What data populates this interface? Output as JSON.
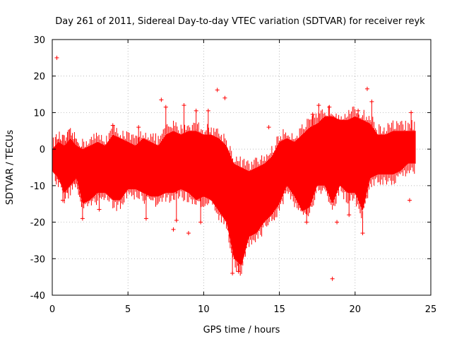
{
  "chart_data": {
    "type": "scatter",
    "title": "Day 261 of 2011, Sidereal Day-to-day VTEC variation (SDTVAR) for receiver reyk",
    "xlabel": "GPS time / hours",
    "ylabel": "SDTVAR / TECUs",
    "xlim": [
      0,
      25
    ],
    "ylim": [
      -40,
      30
    ],
    "xticks": [
      "0",
      "5",
      "10",
      "15",
      "20",
      "25"
    ],
    "yticks": [
      "-40",
      "-30",
      "-20",
      "-10",
      "0",
      "10",
      "20",
      "30"
    ],
    "grid": true,
    "series_color": "#ff0000",
    "marker": "+",
    "envelope": [
      {
        "x": 0.0,
        "hi": 0,
        "lo": -6
      },
      {
        "x": 0.4,
        "hi": 2,
        "lo": -8
      },
      {
        "x": 0.8,
        "hi": 1,
        "lo": -12
      },
      {
        "x": 1.2,
        "hi": 3,
        "lo": -10
      },
      {
        "x": 1.6,
        "hi": 1,
        "lo": -8
      },
      {
        "x": 2.0,
        "hi": 0,
        "lo": -15
      },
      {
        "x": 2.5,
        "hi": 1,
        "lo": -14
      },
      {
        "x": 3.0,
        "hi": 2,
        "lo": -12
      },
      {
        "x": 3.5,
        "hi": 1,
        "lo": -12
      },
      {
        "x": 4.0,
        "hi": 4,
        "lo": -14
      },
      {
        "x": 4.5,
        "hi": 3,
        "lo": -14
      },
      {
        "x": 5.0,
        "hi": 2,
        "lo": -11
      },
      {
        "x": 5.5,
        "hi": 1,
        "lo": -11
      },
      {
        "x": 6.0,
        "hi": 3,
        "lo": -12
      },
      {
        "x": 6.5,
        "hi": 2,
        "lo": -13
      },
      {
        "x": 7.0,
        "hi": 1,
        "lo": -13
      },
      {
        "x": 7.5,
        "hi": 4,
        "lo": -12
      },
      {
        "x": 8.0,
        "hi": 5,
        "lo": -12
      },
      {
        "x": 8.5,
        "hi": 4,
        "lo": -11
      },
      {
        "x": 9.0,
        "hi": 5,
        "lo": -12
      },
      {
        "x": 9.5,
        "hi": 5,
        "lo": -14
      },
      {
        "x": 10.0,
        "hi": 4,
        "lo": -13
      },
      {
        "x": 10.5,
        "hi": 4,
        "lo": -14
      },
      {
        "x": 11.0,
        "hi": 3,
        "lo": -17
      },
      {
        "x": 11.5,
        "hi": 1,
        "lo": -20
      },
      {
        "x": 12.0,
        "hi": -4,
        "lo": -30
      },
      {
        "x": 12.5,
        "hi": -5,
        "lo": -32
      },
      {
        "x": 13.0,
        "hi": -6,
        "lo": -24
      },
      {
        "x": 13.5,
        "hi": -5,
        "lo": -23
      },
      {
        "x": 14.0,
        "hi": -4,
        "lo": -20
      },
      {
        "x": 14.5,
        "hi": -2,
        "lo": -18
      },
      {
        "x": 15.0,
        "hi": 2,
        "lo": -15
      },
      {
        "x": 15.5,
        "hi": 3,
        "lo": -10
      },
      {
        "x": 16.0,
        "hi": 2,
        "lo": -13
      },
      {
        "x": 16.5,
        "hi": 4,
        "lo": -17
      },
      {
        "x": 17.0,
        "hi": 6,
        "lo": -16
      },
      {
        "x": 17.5,
        "hi": 7,
        "lo": -10
      },
      {
        "x": 18.0,
        "hi": 9,
        "lo": -10
      },
      {
        "x": 18.5,
        "hi": 9,
        "lo": -15
      },
      {
        "x": 19.0,
        "hi": 8,
        "lo": -10
      },
      {
        "x": 19.5,
        "hi": 8,
        "lo": -12
      },
      {
        "x": 20.0,
        "hi": 9,
        "lo": -12
      },
      {
        "x": 20.5,
        "hi": 8,
        "lo": -17
      },
      {
        "x": 21.0,
        "hi": 7,
        "lo": -8
      },
      {
        "x": 21.5,
        "hi": 4,
        "lo": -7
      },
      {
        "x": 22.0,
        "hi": 4,
        "lo": -7
      },
      {
        "x": 22.5,
        "hi": 5,
        "lo": -7
      },
      {
        "x": 23.0,
        "hi": 5,
        "lo": -6
      },
      {
        "x": 23.5,
        "hi": 5,
        "lo": -4
      },
      {
        "x": 24.0,
        "hi": 5,
        "lo": -4
      }
    ],
    "spikes": [
      {
        "x": 0.3,
        "y": 25
      },
      {
        "x": 0.5,
        "y": -8
      },
      {
        "x": 0.7,
        "y": -14
      },
      {
        "x": 2.0,
        "y": -19
      },
      {
        "x": 3.1,
        "y": -16.5
      },
      {
        "x": 4.0,
        "y": 6.5
      },
      {
        "x": 5.7,
        "y": 6
      },
      {
        "x": 6.2,
        "y": -19
      },
      {
        "x": 7.2,
        "y": 13.5
      },
      {
        "x": 7.5,
        "y": 11.5
      },
      {
        "x": 8.0,
        "y": -22
      },
      {
        "x": 8.2,
        "y": -19.5
      },
      {
        "x": 8.7,
        "y": 12
      },
      {
        "x": 9.0,
        "y": -23
      },
      {
        "x": 9.5,
        "y": 10.5
      },
      {
        "x": 9.8,
        "y": -20
      },
      {
        "x": 10.3,
        "y": 10.5
      },
      {
        "x": 10.9,
        "y": 16.2
      },
      {
        "x": 11.4,
        "y": 14
      },
      {
        "x": 11.9,
        "y": -34
      },
      {
        "x": 12.3,
        "y": -33.5
      },
      {
        "x": 14.3,
        "y": 6
      },
      {
        "x": 16.8,
        "y": -20
      },
      {
        "x": 17.2,
        "y": 9.5
      },
      {
        "x": 17.6,
        "y": 12
      },
      {
        "x": 18.3,
        "y": 11.5
      },
      {
        "x": 18.5,
        "y": -35.5
      },
      {
        "x": 18.8,
        "y": -20
      },
      {
        "x": 19.6,
        "y": -18
      },
      {
        "x": 20.2,
        "y": 10.5
      },
      {
        "x": 20.5,
        "y": -23
      },
      {
        "x": 20.8,
        "y": 16.5
      },
      {
        "x": 21.1,
        "y": 13
      },
      {
        "x": 23.6,
        "y": -14
      },
      {
        "x": 23.7,
        "y": 10
      }
    ]
  }
}
